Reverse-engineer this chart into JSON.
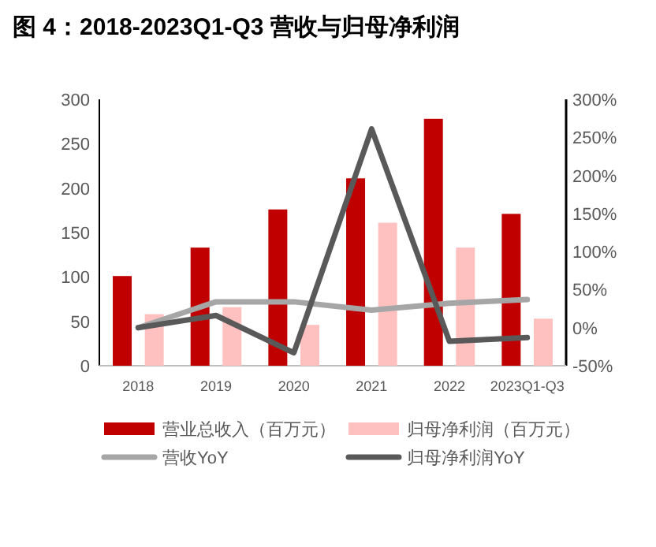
{
  "chart_data": {
    "type": "bar",
    "title": "图 4：2018-2023Q1-Q3 营收与归母净利润",
    "categories": [
      "2018",
      "2019",
      "2020",
      "2021",
      "2022",
      "2023Q1-Q3"
    ],
    "series": [
      {
        "name": "营业总收入（百万元）",
        "color": "#c00000",
        "values": [
          101,
          133,
          176,
          211,
          278,
          171
        ]
      },
      {
        "name": "归母净利润（百万元）",
        "color": "#ffc0c0",
        "values": [
          58,
          66,
          46,
          161,
          133,
          53
        ]
      },
      {
        "name": "营收YoY",
        "type": "line",
        "axis": "y2",
        "color": "#a6a6a6",
        "values": [
          0,
          34,
          34,
          23,
          32,
          37
        ]
      },
      {
        "name": "归母净利润YoY",
        "type": "line",
        "axis": "y2",
        "color": "#595959",
        "values": [
          0,
          16,
          -33,
          261,
          -18,
          -13
        ]
      }
    ],
    "ylim": [
      0,
      300
    ],
    "yticks": [
      0,
      50,
      100,
      150,
      200,
      250,
      300
    ],
    "y2lim": [
      -50,
      300
    ],
    "y2ticks": [
      {
        "value": -50,
        "label": "-50%"
      },
      {
        "value": 0,
        "label": "0%"
      },
      {
        "value": 50,
        "label": "50%"
      },
      {
        "value": 100,
        "label": "100%"
      },
      {
        "value": 150,
        "label": "150%"
      },
      {
        "value": 200,
        "label": "200%"
      },
      {
        "value": 250,
        "label": "250%"
      },
      {
        "value": 300,
        "label": "300%"
      }
    ],
    "legend": "bottom"
  }
}
